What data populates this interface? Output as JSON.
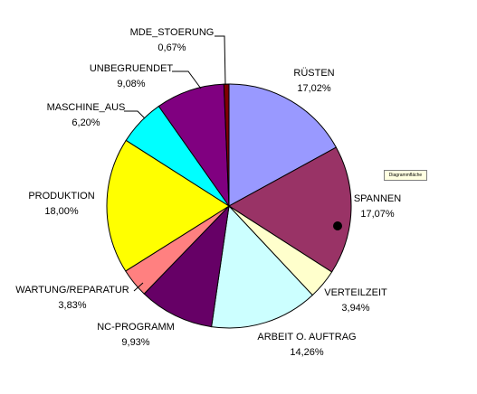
{
  "chart_data": {
    "type": "pie",
    "start_angle_deg": 0,
    "direction": "clockwise",
    "slices": [
      {
        "label": "RÜSTEN",
        "percent_label": "17,02%",
        "value": 17.02,
        "color": "#9999ff"
      },
      {
        "label": "SPANNEN",
        "percent_label": "17,07%",
        "value": 17.07,
        "color": "#993366"
      },
      {
        "label": "VERTEILZEIT",
        "percent_label": "3,94%",
        "value": 3.94,
        "color": "#ffffcc"
      },
      {
        "label": "ARBEIT O. AUFTRAG",
        "percent_label": "14,26%",
        "value": 14.26,
        "color": "#ccffff"
      },
      {
        "label": "NC-PROGRAMM",
        "percent_label": "9,93%",
        "value": 9.93,
        "color": "#660066"
      },
      {
        "label": "WARTUNG/REPARATUR",
        "percent_label": "3,83%",
        "value": 3.83,
        "color": "#ff8080"
      },
      {
        "label": "PRODUKTION",
        "percent_label": "18,00%",
        "value": 18.0,
        "color": "#ffff00"
      },
      {
        "label": "MASCHINE_AUS",
        "percent_label": "6,20%",
        "value": 6.2,
        "color": "#00ffff"
      },
      {
        "label": "UNBEGRUENDET",
        "percent_label": "9,08%",
        "value": 9.08,
        "color": "#800080"
      },
      {
        "label": "MDE_STOERUNG",
        "percent_label": "0,67%",
        "value": 0.67,
        "color": "#800000"
      }
    ]
  },
  "tooltip": "Diagrammfläche"
}
